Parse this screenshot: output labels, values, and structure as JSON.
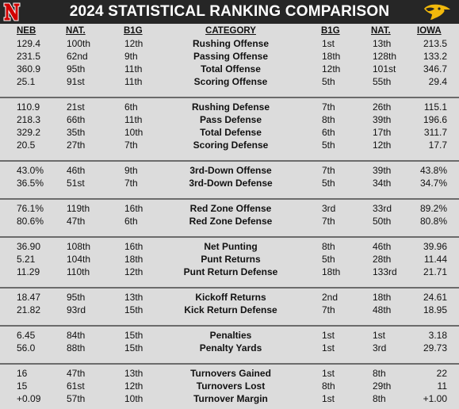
{
  "title": "2024 STATISTICAL RANKING COMPARISON",
  "colors": {
    "header_bg": "#262626",
    "nebraska_red": "#d00000",
    "iowa_gold": "#f2b90c"
  },
  "columns": {
    "neb": "NEB",
    "nat_left": "NAT.",
    "b1g_left": "B1G",
    "category": "CATEGORY",
    "b1g_right": "B1G",
    "nat_right": "NAT.",
    "iowa": "IOWA"
  },
  "groups": [
    {
      "rows": [
        {
          "neb": "129.4",
          "neb_nat": "100th",
          "neb_b1g": "12th",
          "category": "Rushing Offense",
          "iowa_b1g": "1st",
          "iowa_nat": "13th",
          "iowa": "213.5"
        },
        {
          "neb": "231.5",
          "neb_nat": "62nd",
          "neb_b1g": "9th",
          "category": "Passing Offense",
          "iowa_b1g": "18th",
          "iowa_nat": "128th",
          "iowa": "133.2"
        },
        {
          "neb": "360.9",
          "neb_nat": "95th",
          "neb_b1g": "11th",
          "category": "Total Offense",
          "iowa_b1g": "12th",
          "iowa_nat": "101st",
          "iowa": "346.7"
        },
        {
          "neb": "25.1",
          "neb_nat": "91st",
          "neb_b1g": "11th",
          "category": "Scoring Offense",
          "iowa_b1g": "5th",
          "iowa_nat": "55th",
          "iowa": "29.4"
        }
      ]
    },
    {
      "rows": [
        {
          "neb": "110.9",
          "neb_nat": "21st",
          "neb_b1g": "6th",
          "category": "Rushing Defense",
          "iowa_b1g": "7th",
          "iowa_nat": "26th",
          "iowa": "115.1"
        },
        {
          "neb": "218.3",
          "neb_nat": "66th",
          "neb_b1g": "11th",
          "category": "Pass Defense",
          "iowa_b1g": "8th",
          "iowa_nat": "39th",
          "iowa": "196.6"
        },
        {
          "neb": "329.2",
          "neb_nat": "35th",
          "neb_b1g": "10th",
          "category": "Total Defense",
          "iowa_b1g": "6th",
          "iowa_nat": "17th",
          "iowa": "311.7"
        },
        {
          "neb": "20.5",
          "neb_nat": "27th",
          "neb_b1g": "7th",
          "category": "Scoring Defense",
          "iowa_b1g": "5th",
          "iowa_nat": "12th",
          "iowa": "17.7"
        }
      ]
    },
    {
      "rows": [
        {
          "neb": "43.0%",
          "neb_nat": "46th",
          "neb_b1g": "9th",
          "category": "3rd-Down Offense",
          "iowa_b1g": "7th",
          "iowa_nat": "39th",
          "iowa": "43.8%"
        },
        {
          "neb": "36.5%",
          "neb_nat": "51st",
          "neb_b1g": "7th",
          "category": "3rd-Down Defense",
          "iowa_b1g": "5th",
          "iowa_nat": "34th",
          "iowa": "34.7%"
        }
      ]
    },
    {
      "rows": [
        {
          "neb": "76.1%",
          "neb_nat": "119th",
          "neb_b1g": "16th",
          "category": "Red Zone Offense",
          "iowa_b1g": "3rd",
          "iowa_nat": "33rd",
          "iowa": "89.2%"
        },
        {
          "neb": "80.6%",
          "neb_nat": "47th",
          "neb_b1g": "6th",
          "category": "Red Zone Defense",
          "iowa_b1g": "7th",
          "iowa_nat": "50th",
          "iowa": "80.8%"
        }
      ]
    },
    {
      "rows": [
        {
          "neb": "36.90",
          "neb_nat": "108th",
          "neb_b1g": "16th",
          "category": "Net Punting",
          "iowa_b1g": "8th",
          "iowa_nat": "46th",
          "iowa": "39.96"
        },
        {
          "neb": "5.21",
          "neb_nat": "104th",
          "neb_b1g": "18th",
          "category": "Punt Returns",
          "iowa_b1g": "5th",
          "iowa_nat": "28th",
          "iowa": "11.44"
        },
        {
          "neb": "11.29",
          "neb_nat": "110th",
          "neb_b1g": "12th",
          "category": "Punt Return Defense",
          "iowa_b1g": "18th",
          "iowa_nat": "133rd",
          "iowa": "21.71"
        }
      ]
    },
    {
      "rows": [
        {
          "neb": "18.47",
          "neb_nat": "95th",
          "neb_b1g": "13th",
          "category": "Kickoff Returns",
          "iowa_b1g": "2nd",
          "iowa_nat": "18th",
          "iowa": "24.61"
        },
        {
          "neb": "21.82",
          "neb_nat": "93rd",
          "neb_b1g": "15th",
          "category": "Kick Return Defense",
          "iowa_b1g": "7th",
          "iowa_nat": "48th",
          "iowa": "18.95"
        }
      ]
    },
    {
      "rows": [
        {
          "neb": "6.45",
          "neb_nat": "84th",
          "neb_b1g": "15th",
          "category": "Penalties",
          "iowa_b1g": "1st",
          "iowa_nat": "1st",
          "iowa": "3.18"
        },
        {
          "neb": "56.0",
          "neb_nat": "88th",
          "neb_b1g": "15th",
          "category": "Penalty Yards",
          "iowa_b1g": "1st",
          "iowa_nat": "3rd",
          "iowa": "29.73"
        }
      ]
    },
    {
      "rows": [
        {
          "neb": "16",
          "neb_nat": "47th",
          "neb_b1g": "13th",
          "category": "Turnovers Gained",
          "iowa_b1g": "1st",
          "iowa_nat": "8th",
          "iowa": "22"
        },
        {
          "neb": "15",
          "neb_nat": "61st",
          "neb_b1g": "12th",
          "category": "Turnovers Lost",
          "iowa_b1g": "8th",
          "iowa_nat": "29th",
          "iowa": "11"
        },
        {
          "neb": "+0.09",
          "neb_nat": "57th",
          "neb_b1g": "10th",
          "category": "Turnover Margin",
          "iowa_b1g": "1st",
          "iowa_nat": "8th",
          "iowa": "+1.00"
        }
      ]
    }
  ]
}
